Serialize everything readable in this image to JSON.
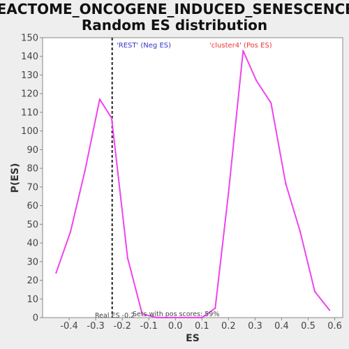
{
  "chart_data": {
    "type": "line",
    "title_lines": [
      "REACTOME_ONCOGENE_INDUCED_SENESCENCE:",
      "Random ES distribution"
    ],
    "xlabel": "ES",
    "ylabel": "P(ES)",
    "xlim": [
      -0.5,
      0.63
    ],
    "ylim": [
      0,
      150
    ],
    "x_ticks": [
      -0.4,
      -0.3,
      -0.2,
      -0.1,
      0.0,
      0.1,
      0.2,
      0.3,
      0.4,
      0.5,
      0.6
    ],
    "x_tick_labels": [
      "-0.4",
      "-0.3",
      "-0.2",
      "-0.1",
      "0.0",
      "0.1",
      "0.2",
      "0.3",
      "0.4",
      "0.5",
      "0.6"
    ],
    "y_ticks": [
      0,
      10,
      20,
      30,
      40,
      50,
      60,
      70,
      80,
      90,
      100,
      110,
      120,
      130,
      140,
      150
    ],
    "grid": false,
    "series": [
      {
        "color": "#ee44ee",
        "x": [
          -0.449,
          -0.395,
          -0.34,
          -0.285,
          -0.24,
          -0.18,
          -0.125,
          -0.07,
          0.1,
          0.15,
          0.2,
          0.255,
          0.305,
          0.36,
          0.415,
          0.47,
          0.525,
          0.58
        ],
        "y": [
          24,
          46,
          79,
          117,
          107,
          32,
          2,
          0,
          0,
          5,
          67,
          143,
          127,
          115,
          72,
          46,
          14,
          4
        ]
      }
    ],
    "real_es_line": {
      "x": -0.238,
      "color": "#222222",
      "style": "dashed"
    },
    "annotations": {
      "neg_label": "'REST' (Neg ES)",
      "neg_color": "#3333cc",
      "pos_label": "'cluster4' (Pos ES)",
      "pos_color": "#ee3333",
      "real_es_text": "Real ES -0.2",
      "pos_scores_text": "Sets with pos scores: 59%"
    }
  }
}
